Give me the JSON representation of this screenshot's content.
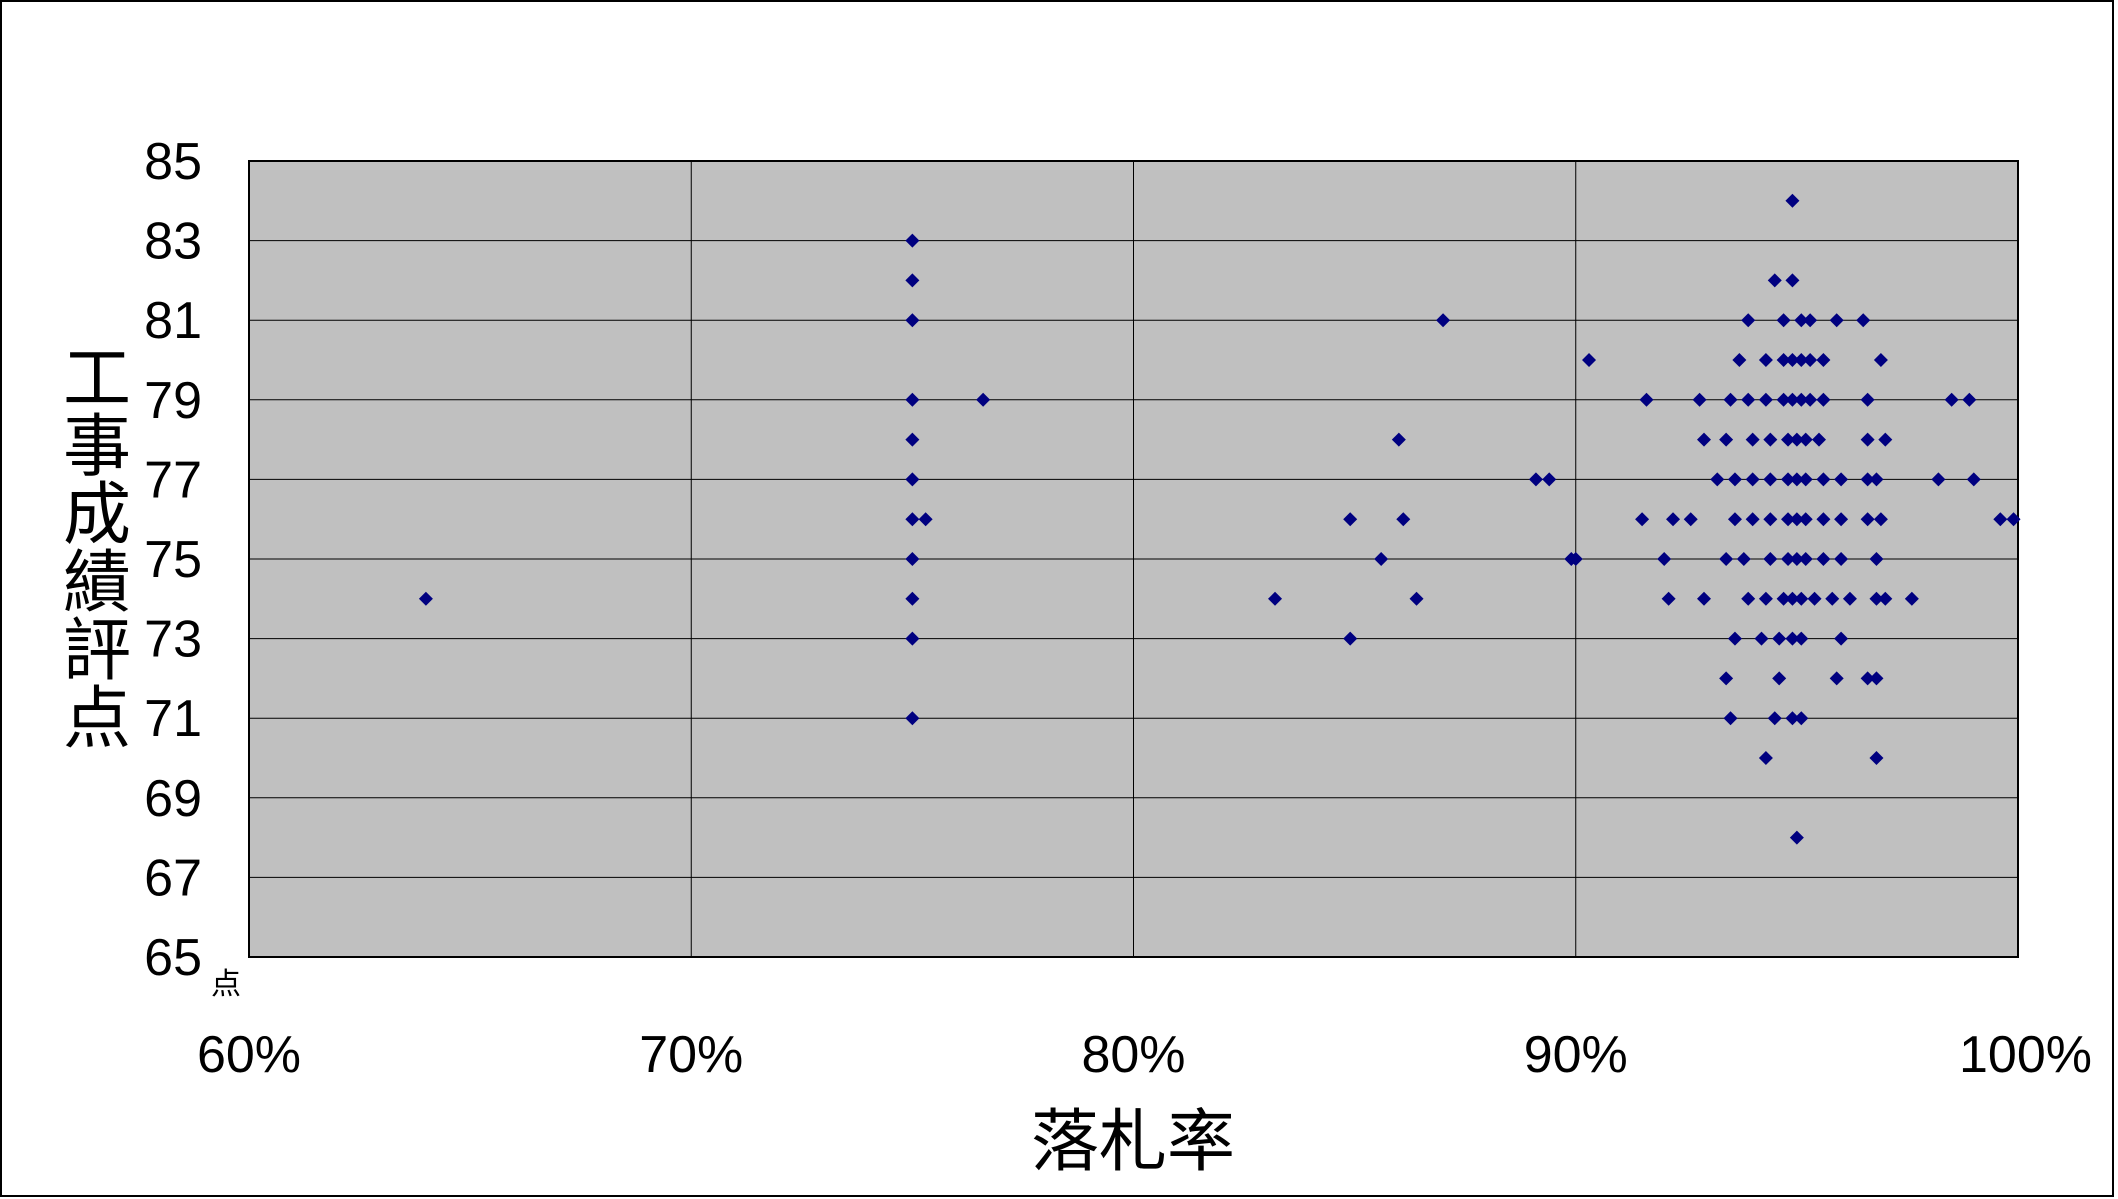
{
  "chart_data": {
    "type": "scatter",
    "xlabel": "落札率",
    "ylabel": "工事成績評点",
    "y_unit": "点",
    "xlim": [
      60,
      100
    ],
    "ylim": [
      65,
      85
    ],
    "x_ticks": [
      60,
      70,
      80,
      90,
      100
    ],
    "x_tick_labels": [
      "60%",
      "70%",
      "80%",
      "90%",
      "100%"
    ],
    "y_ticks": [
      65,
      67,
      69,
      71,
      73,
      75,
      77,
      79,
      81,
      83,
      85
    ],
    "y_tick_labels": [
      "65",
      "67",
      "69",
      "71",
      "73",
      "75",
      "77",
      "79",
      "81",
      "83",
      "85"
    ],
    "grid": true,
    "legend": "none",
    "colors": {
      "plot_bg": "#c0c0c0",
      "marker": "#000080",
      "grid": "#000000"
    },
    "marker": "diamond",
    "series": [
      {
        "points": [
          [
            64.0,
            74
          ],
          [
            75.0,
            83
          ],
          [
            75.0,
            82
          ],
          [
            75.0,
            81
          ],
          [
            75.0,
            79
          ],
          [
            76.6,
            79
          ],
          [
            75.0,
            78
          ],
          [
            75.0,
            77
          ],
          [
            75.0,
            76
          ],
          [
            75.3,
            76
          ],
          [
            75.0,
            75
          ],
          [
            75.0,
            74
          ],
          [
            75.0,
            73
          ],
          [
            75.0,
            71
          ],
          [
            87.0,
            81
          ],
          [
            86.0,
            78
          ],
          [
            89.1,
            77
          ],
          [
            89.4,
            77
          ],
          [
            84.9,
            76
          ],
          [
            86.1,
            76
          ],
          [
            85.6,
            75
          ],
          [
            89.9,
            75
          ],
          [
            90.0,
            75
          ],
          [
            83.2,
            74
          ],
          [
            86.4,
            74
          ],
          [
            84.9,
            73
          ],
          [
            94.9,
            84
          ],
          [
            94.5,
            82
          ],
          [
            94.9,
            82
          ],
          [
            93.9,
            81
          ],
          [
            94.7,
            81
          ],
          [
            95.1,
            81
          ],
          [
            95.3,
            81
          ],
          [
            95.9,
            81
          ],
          [
            96.5,
            81
          ],
          [
            90.3,
            80
          ],
          [
            93.7,
            80
          ],
          [
            94.3,
            80
          ],
          [
            94.7,
            80
          ],
          [
            94.9,
            80
          ],
          [
            95.1,
            80
          ],
          [
            95.3,
            80
          ],
          [
            95.6,
            80
          ],
          [
            96.9,
            80
          ],
          [
            91.6,
            79
          ],
          [
            92.8,
            79
          ],
          [
            93.5,
            79
          ],
          [
            93.9,
            79
          ],
          [
            94.3,
            79
          ],
          [
            94.7,
            79
          ],
          [
            94.9,
            79
          ],
          [
            95.1,
            79
          ],
          [
            95.3,
            79
          ],
          [
            95.6,
            79
          ],
          [
            96.6,
            79
          ],
          [
            98.5,
            79
          ],
          [
            98.9,
            79
          ],
          [
            92.9,
            78
          ],
          [
            93.4,
            78
          ],
          [
            94.0,
            78
          ],
          [
            94.4,
            78
          ],
          [
            94.8,
            78
          ],
          [
            95.0,
            78
          ],
          [
            95.2,
            78
          ],
          [
            95.5,
            78
          ],
          [
            96.6,
            78
          ],
          [
            97.0,
            78
          ],
          [
            93.2,
            77
          ],
          [
            93.6,
            77
          ],
          [
            94.0,
            77
          ],
          [
            94.4,
            77
          ],
          [
            94.8,
            77
          ],
          [
            95.0,
            77
          ],
          [
            95.2,
            77
          ],
          [
            95.6,
            77
          ],
          [
            96.0,
            77
          ],
          [
            96.6,
            77
          ],
          [
            96.8,
            77
          ],
          [
            98.2,
            77
          ],
          [
            99.0,
            77
          ],
          [
            91.5,
            76
          ],
          [
            92.2,
            76
          ],
          [
            92.6,
            76
          ],
          [
            93.6,
            76
          ],
          [
            94.0,
            76
          ],
          [
            94.4,
            76
          ],
          [
            94.8,
            76
          ],
          [
            95.0,
            76
          ],
          [
            95.2,
            76
          ],
          [
            95.6,
            76
          ],
          [
            96.0,
            76
          ],
          [
            96.6,
            76
          ],
          [
            96.9,
            76
          ],
          [
            99.6,
            76
          ],
          [
            99.9,
            76
          ],
          [
            92.0,
            75
          ],
          [
            93.4,
            75
          ],
          [
            93.8,
            75
          ],
          [
            94.4,
            75
          ],
          [
            94.8,
            75
          ],
          [
            95.0,
            75
          ],
          [
            95.2,
            75
          ],
          [
            95.6,
            75
          ],
          [
            96.0,
            75
          ],
          [
            96.8,
            75
          ],
          [
            92.1,
            74
          ],
          [
            92.9,
            74
          ],
          [
            93.9,
            74
          ],
          [
            94.3,
            74
          ],
          [
            94.7,
            74
          ],
          [
            94.9,
            74
          ],
          [
            95.1,
            74
          ],
          [
            95.4,
            74
          ],
          [
            95.8,
            74
          ],
          [
            96.2,
            74
          ],
          [
            96.8,
            74
          ],
          [
            97.0,
            74
          ],
          [
            97.6,
            74
          ],
          [
            93.6,
            73
          ],
          [
            94.2,
            73
          ],
          [
            94.6,
            73
          ],
          [
            94.9,
            73
          ],
          [
            95.1,
            73
          ],
          [
            96.0,
            73
          ],
          [
            93.4,
            72
          ],
          [
            94.6,
            72
          ],
          [
            95.9,
            72
          ],
          [
            96.6,
            72
          ],
          [
            96.8,
            72
          ],
          [
            93.5,
            71
          ],
          [
            94.5,
            71
          ],
          [
            94.9,
            71
          ],
          [
            95.1,
            71
          ],
          [
            94.3,
            70
          ],
          [
            96.8,
            70
          ],
          [
            95.0,
            68
          ]
        ]
      }
    ]
  }
}
